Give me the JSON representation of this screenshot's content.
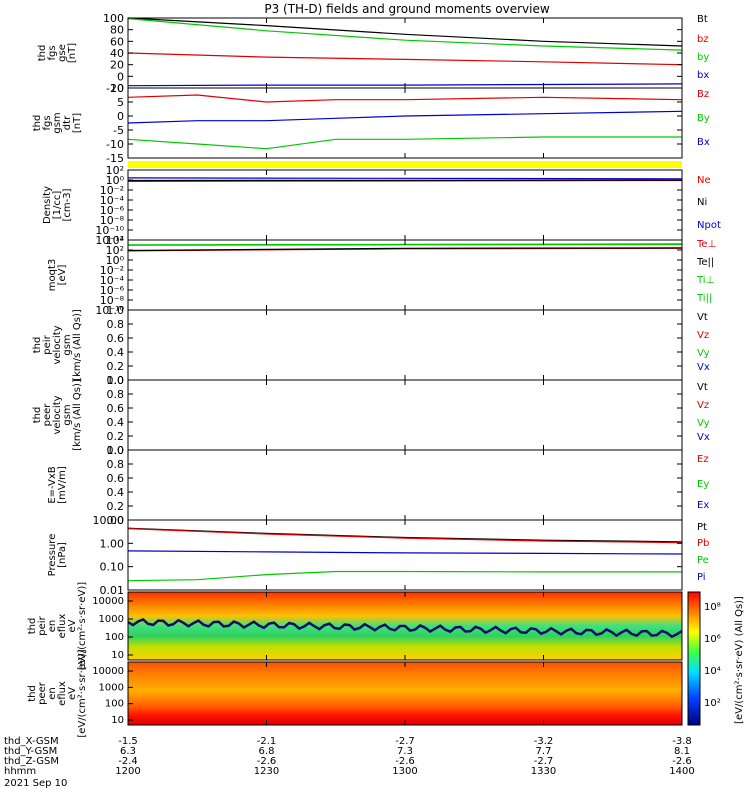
{
  "title": "P3 (TH-D) fields and ground moments overview",
  "colors": {
    "black": "#000000",
    "red": "#e00000",
    "green": "#00c800",
    "blue": "#0000d0",
    "yellow": "#ffff00"
  },
  "chart_data": [
    {
      "type": "line",
      "ylabel": [
        "thd",
        "fgs",
        "gse",
        "[nT]"
      ],
      "yticks": [
        100,
        80,
        60,
        40,
        20,
        0,
        -20
      ],
      "ylim": [
        -20,
        100
      ],
      "legend": [
        {
          "name": "Bt",
          "color": "black"
        },
        {
          "name": "bz",
          "color": "red"
        },
        {
          "name": "by",
          "color": "green"
        },
        {
          "name": "bx",
          "color": "blue"
        }
      ],
      "series": [
        {
          "name": "Bt",
          "color": "black",
          "x": [
            1200,
            1230,
            1300,
            1330,
            1400
          ],
          "y": [
            100,
            87,
            72,
            60,
            52
          ]
        },
        {
          "name": "bz",
          "color": "red",
          "x": [
            1200,
            1230,
            1300,
            1330,
            1400
          ],
          "y": [
            40,
            33,
            29,
            25,
            20
          ]
        },
        {
          "name": "by",
          "color": "green",
          "x": [
            1200,
            1230,
            1300,
            1330,
            1400
          ],
          "y": [
            99,
            78,
            62,
            52,
            45
          ]
        },
        {
          "name": "bx",
          "color": "blue",
          "x": [
            1200,
            1230,
            1300,
            1330,
            1400
          ],
          "y": [
            -16,
            -15,
            -15,
            -14,
            -13
          ]
        }
      ]
    },
    {
      "type": "line",
      "ylabel": [
        "thd",
        "fgs",
        "gsm",
        "dtr",
        "[nT]"
      ],
      "yticks": [
        10,
        5,
        0,
        -5,
        -10,
        -15
      ],
      "ylim": [
        -18,
        12
      ],
      "legend": [
        {
          "name": "Bz",
          "color": "red"
        },
        {
          "name": "By",
          "color": "green"
        },
        {
          "name": "Bx",
          "color": "blue"
        }
      ],
      "series": [
        {
          "name": "Bz",
          "color": "red",
          "x": [
            1200,
            1215,
            1230,
            1245,
            1300,
            1330,
            1400
          ],
          "y": [
            8,
            9,
            6,
            7,
            7,
            8,
            7
          ]
        },
        {
          "name": "By",
          "color": "green",
          "x": [
            1200,
            1215,
            1230,
            1245,
            1300,
            1330,
            1400
          ],
          "y": [
            -10,
            -12,
            -14,
            -10,
            -10,
            -9,
            -9
          ]
        },
        {
          "name": "Bx",
          "color": "blue",
          "x": [
            1200,
            1215,
            1230,
            1245,
            1300,
            1330,
            1400
          ],
          "y": [
            -3,
            -2,
            -2,
            -1,
            0,
            1,
            2
          ]
        }
      ]
    },
    {
      "type": "line",
      "ylabel": [
        "Density",
        "[1/cc]",
        "[cm-3]"
      ],
      "yticks": [
        "10²",
        "10⁰",
        "10⁻²",
        "10⁻⁴",
        "10⁻⁶",
        "10⁻⁸",
        "10⁻¹⁰",
        "10⁻¹²"
      ],
      "ylim": [
        -13,
        3
      ],
      "scale": "log",
      "legend": [
        {
          "name": "Ne",
          "color": "red"
        },
        {
          "name": "Ni",
          "color": "black"
        },
        {
          "name": "Npot",
          "color": "blue"
        }
      ],
      "series": [
        {
          "name": "Ne",
          "color": "red",
          "x": [
            1200,
            1400
          ],
          "y": [
            0.4,
            0.6
          ]
        },
        {
          "name": "Ni",
          "color": "black",
          "x": [
            1200,
            1400
          ],
          "y": [
            0.6,
            0.7
          ]
        },
        {
          "name": "Npot",
          "color": "blue",
          "x": [
            1200,
            1400
          ],
          "y": [
            1.2,
            1.0
          ]
        }
      ]
    },
    {
      "type": "line",
      "ylabel": [
        "moqt3",
        "[eV]"
      ],
      "yticks": [
        "10⁴",
        "10²",
        "10⁰",
        "10⁻²",
        "10⁻⁴",
        "10⁻⁶",
        "10⁻⁸",
        "10⁻¹⁰"
      ],
      "ylim": [
        -11,
        5
      ],
      "scale": "log",
      "legend": [
        {
          "name": "Te⊥",
          "color": "red"
        },
        {
          "name": "Te||",
          "color": "black"
        },
        {
          "name": "Ti⊥",
          "color": "green"
        },
        {
          "name": "Ti||",
          "color": "green"
        }
      ],
      "series": [
        {
          "name": "Te⊥",
          "color": "red",
          "x": [
            1200,
            1300,
            1400
          ],
          "y": [
            2.5,
            3.0,
            3.1
          ]
        },
        {
          "name": "Te||",
          "color": "black",
          "x": [
            1200,
            1300,
            1400
          ],
          "y": [
            2.6,
            3.1,
            3.2
          ]
        },
        {
          "name": "Ti⊥",
          "color": "green",
          "x": [
            1200,
            1300,
            1400
          ],
          "y": [
            3.8,
            3.9,
            4.0
          ]
        },
        {
          "name": "Ti||",
          "color": "green",
          "x": [
            1200,
            1300,
            1400
          ],
          "y": [
            3.9,
            4.0,
            4.1
          ]
        }
      ]
    },
    {
      "type": "line",
      "ylabel": [
        "thd",
        "peir",
        "velocity",
        "gsm",
        "[km/s (All Qs)]"
      ],
      "yticks": [
        "1.0",
        "0.8",
        "0.6",
        "0.4",
        "0.2",
        "0.0"
      ],
      "ylim": [
        0,
        1
      ],
      "legend": [
        {
          "name": "Vt",
          "color": "black"
        },
        {
          "name": "Vz",
          "color": "red"
        },
        {
          "name": "Vy",
          "color": "green"
        },
        {
          "name": "Vx",
          "color": "blue"
        }
      ],
      "series": []
    },
    {
      "type": "line",
      "ylabel": [
        "thd",
        "peer",
        "velocity",
        "gsm",
        "[km/s (All Qs)]"
      ],
      "yticks": [
        "1.0",
        "0.8",
        "0.6",
        "0.4",
        "0.2",
        "0.0"
      ],
      "ylim": [
        0,
        1
      ],
      "legend": [
        {
          "name": "Vt",
          "color": "black"
        },
        {
          "name": "Vz",
          "color": "red"
        },
        {
          "name": "Vy",
          "color": "green"
        },
        {
          "name": "Vx",
          "color": "blue"
        }
      ],
      "series": []
    },
    {
      "type": "line",
      "ylabel": [
        "E=-VxB",
        "[mV/m]"
      ],
      "yticks": [
        "1.0",
        "0.8",
        "0.6",
        "0.4",
        "0.2",
        "0.0"
      ],
      "ylim": [
        0,
        1
      ],
      "legend": [
        {
          "name": "Ez",
          "color": "red"
        },
        {
          "name": "Ey",
          "color": "green"
        },
        {
          "name": "Ex",
          "color": "blue"
        }
      ],
      "series": []
    },
    {
      "type": "line",
      "ylabel": [
        "Pressure",
        "[nPa]"
      ],
      "yticks": [
        "10.00",
        "1.00",
        "0.10",
        "0.01"
      ],
      "ylim": [
        -2.2,
        1.2
      ],
      "scale": "log",
      "legend": [
        {
          "name": "Pt",
          "color": "black"
        },
        {
          "name": "Pb",
          "color": "red"
        },
        {
          "name": "Pe",
          "color": "green"
        },
        {
          "name": "Pi",
          "color": "blue"
        }
      ],
      "series": [
        {
          "name": "Pt",
          "color": "black",
          "x": [
            1200,
            1230,
            1300,
            1330,
            1400
          ],
          "y": [
            0.8,
            0.55,
            0.35,
            0.22,
            0.14
          ]
        },
        {
          "name": "Pb",
          "color": "red",
          "x": [
            1200,
            1230,
            1300,
            1330,
            1400
          ],
          "y": [
            0.78,
            0.52,
            0.32,
            0.18,
            0.1
          ]
        },
        {
          "name": "Pe",
          "color": "green",
          "x": [
            1200,
            1215,
            1230,
            1245,
            1300,
            1330,
            1400
          ],
          "y": [
            -1.75,
            -1.7,
            -1.45,
            -1.3,
            -1.3,
            -1.32,
            -1.32
          ]
        },
        {
          "name": "Pi",
          "color": "blue",
          "x": [
            1200,
            1230,
            1300,
            1330,
            1400
          ],
          "y": [
            -0.3,
            -0.35,
            -0.4,
            -0.42,
            -0.45
          ]
        }
      ]
    },
    {
      "type": "heatmap",
      "ylabel": [
        "thd",
        "peir",
        "en",
        "eflux",
        "eV",
        "[eV/(cm²·s·sr·eV)]"
      ],
      "yticks": [
        "10000",
        "1000",
        "100",
        "10"
      ],
      "scale": "log"
    },
    {
      "type": "heatmap",
      "ylabel": [
        "thd",
        "peer",
        "en",
        "eflux",
        "eV",
        "[eV/(cm²·s·sr·eV)]"
      ],
      "yticks": [
        "10000",
        "1000",
        "100",
        "10"
      ],
      "scale": "log"
    }
  ],
  "colorbar": {
    "ticks": [
      "10⁸",
      "10⁶",
      "10⁴",
      "10²"
    ],
    "label": "[eV/(cm²·s·sr·eV) (All Qs)]"
  },
  "xaxis": {
    "rows": [
      {
        "label": "thd_X-GSM",
        "values": [
          "-1.5",
          "-2.1",
          "-2.7",
          "-3.2",
          "-3.8"
        ]
      },
      {
        "label": "thd_Y-GSM",
        "values": [
          "6.3",
          "6.8",
          "7.3",
          "7.7",
          "8.1"
        ]
      },
      {
        "label": "thd_Z-GSM",
        "values": [
          "-2.4",
          "-2.6",
          "-2.6",
          "-2.7",
          "-2.6"
        ]
      },
      {
        "label": "hhmm",
        "values": [
          "1200",
          "1230",
          "1300",
          "1330",
          "1400"
        ]
      }
    ],
    "date": "2021 Sep 10"
  }
}
